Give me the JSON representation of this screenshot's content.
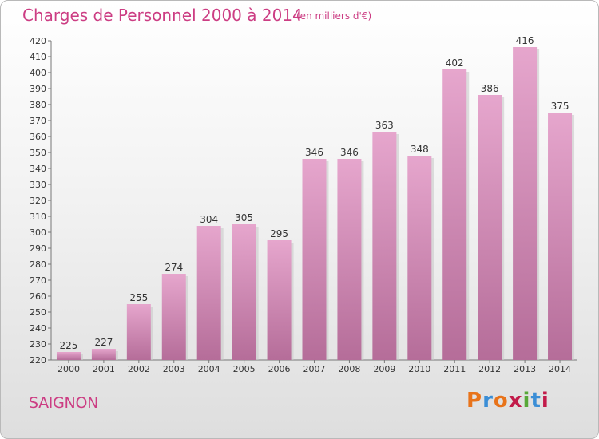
{
  "header": {
    "title": "Charges de Personnel 2000 à 2014",
    "subtitle": "(en milliers d'€)"
  },
  "footer": {
    "commune": "SAIGNON",
    "logo_text": "Proxiti"
  },
  "colors": {
    "accent": "#cc3d83",
    "bar_top": "#e6a6cd",
    "bar_bottom": "#b56d99",
    "logo": [
      "#e8731a",
      "#3b8ed6",
      "#e8731a",
      "#c21b4a",
      "#58a838",
      "#3b8ed6",
      "#c21b4a"
    ]
  },
  "chart_data": {
    "type": "bar",
    "title": "Charges de Personnel 2000 à 2014",
    "subtitle": "(en milliers d'€)",
    "categories": [
      "2000",
      "2001",
      "2002",
      "2003",
      "2004",
      "2005",
      "2006",
      "2007",
      "2008",
      "2009",
      "2010",
      "2011",
      "2012",
      "2013",
      "2014"
    ],
    "values": [
      225,
      227,
      255,
      274,
      304,
      305,
      295,
      346,
      346,
      363,
      348,
      402,
      386,
      416,
      375
    ],
    "ylim": [
      220,
      420
    ],
    "yticks": [
      220,
      230,
      240,
      250,
      260,
      270,
      280,
      290,
      300,
      310,
      320,
      330,
      340,
      350,
      360,
      370,
      380,
      390,
      400,
      410,
      420
    ],
    "grid": false,
    "xlabel": "",
    "ylabel": ""
  }
}
